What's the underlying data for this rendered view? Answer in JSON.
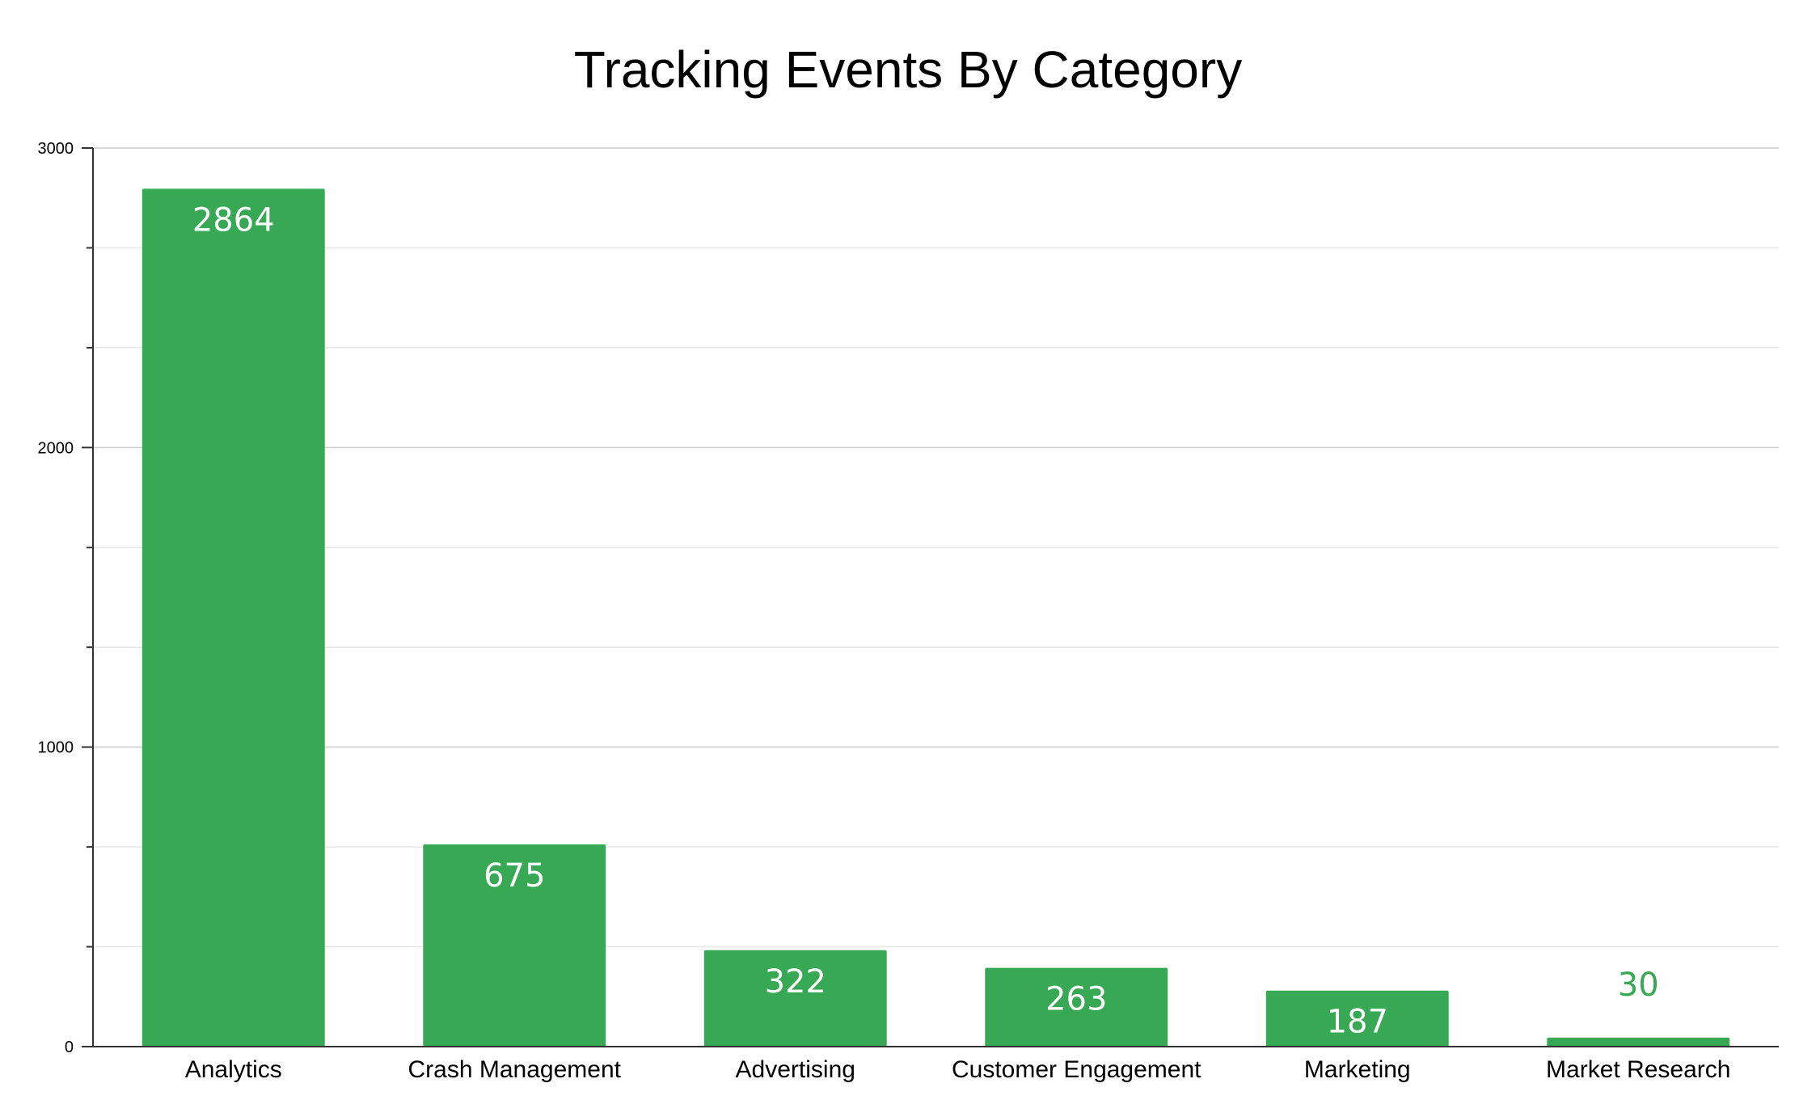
{
  "chart_data": {
    "type": "bar",
    "title": "Tracking Events By Category",
    "xlabel": "",
    "ylabel": "",
    "categories": [
      "Analytics",
      "Crash Management",
      "Advertising",
      "Customer Engagement",
      "Marketing",
      "Market Research"
    ],
    "values": [
      2864,
      675,
      322,
      263,
      187,
      30
    ],
    "data_labels": [
      "2864",
      "675",
      "322",
      "263",
      "187",
      "30"
    ],
    "ylim": [
      0,
      3000
    ],
    "y_ticks": [
      0,
      1000,
      2000,
      3000
    ],
    "y_tick_labels": [
      "0",
      "1000",
      "2000",
      "3000"
    ],
    "y_minor_step": 333.33,
    "grid": true,
    "legend": "none",
    "colors": {
      "bar": "#37a853",
      "label_inside": "#ffffff",
      "label_outside": "#37a853",
      "grid_major": "#cccccc",
      "grid_minor": "#e6e6e6",
      "axis": "#333333"
    }
  }
}
